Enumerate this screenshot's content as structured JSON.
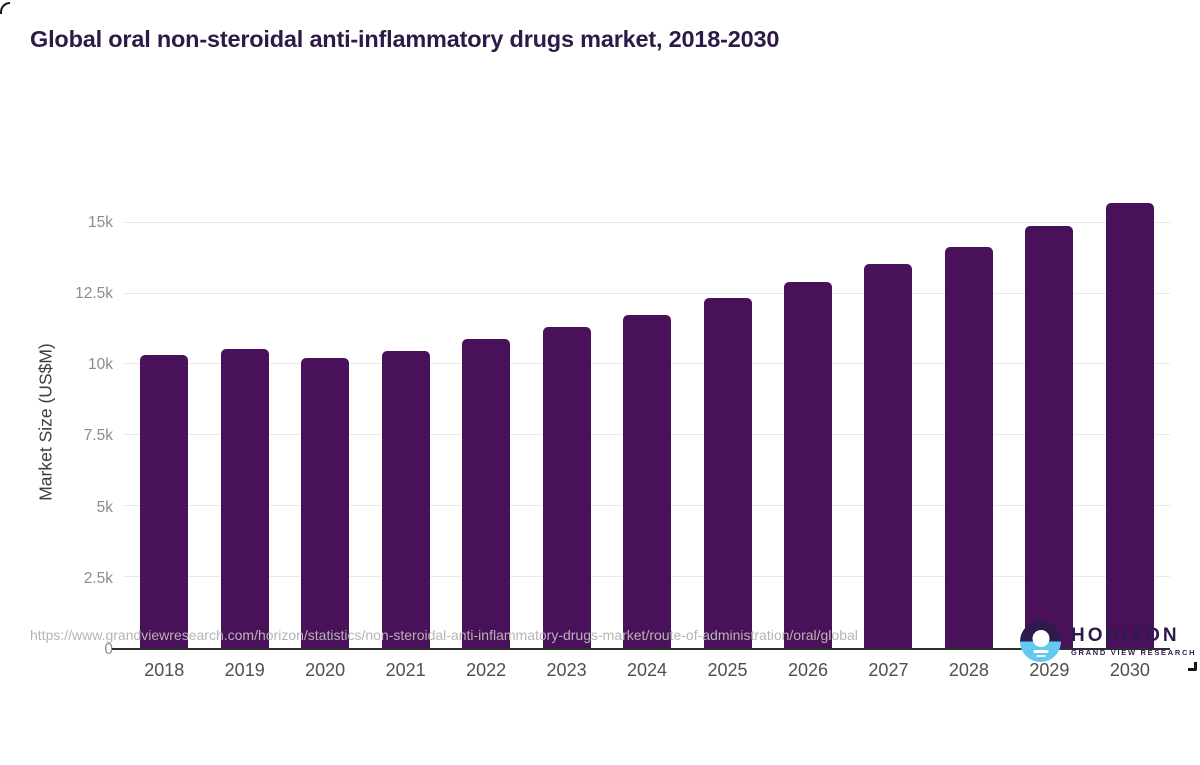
{
  "title": "Global oral non-steroidal anti-inflammatory drugs market, 2018-2030",
  "chart_data": {
    "type": "bar",
    "title": "Global oral non-steroidal anti-inflammatory drugs market, 2018-2030",
    "categories": [
      "2018",
      "2019",
      "2020",
      "2021",
      "2022",
      "2023",
      "2024",
      "2025",
      "2026",
      "2027",
      "2028",
      "2029",
      "2030"
    ],
    "values": [
      10320,
      10550,
      10240,
      10460,
      10880,
      11310,
      11760,
      12330,
      12890,
      13540,
      14150,
      14890,
      15690
    ],
    "xlabel": "",
    "ylabel": "Market Size (US$M)",
    "ylim": [
      0,
      16150
    ],
    "yticks": [
      {
        "value": 0,
        "label": "0"
      },
      {
        "value": 2500,
        "label": "2.5k"
      },
      {
        "value": 5000,
        "label": "5k"
      },
      {
        "value": 7500,
        "label": "7.5k"
      },
      {
        "value": 10000,
        "label": "10k"
      },
      {
        "value": 12500,
        "label": "12.5k"
      },
      {
        "value": 15000,
        "label": "15k"
      }
    ],
    "grid": true,
    "legend": false,
    "bar_color": "#4a115b"
  },
  "colors": {
    "title_text": "#2e1a47",
    "bar": "#4a115b",
    "axis_line": "#2e2e2e",
    "gridline": "#e9e9e9",
    "y_tick_text": "#8c8c8c",
    "x_tick_text": "#4f4f4f",
    "url_text": "#b5b5b5",
    "logo_purple": "#2e1b4e",
    "logo_blue": "#63c9f1"
  },
  "footer": {
    "source_url": "https://www.grandviewresearch.com/horizon/statistics/non-steroidal-anti-inflammatory-drugs-market/route-of-administration/oral/global",
    "logo": {
      "name": "HORIZON",
      "subtitle": "GRAND VIEW RESEARCH"
    }
  }
}
